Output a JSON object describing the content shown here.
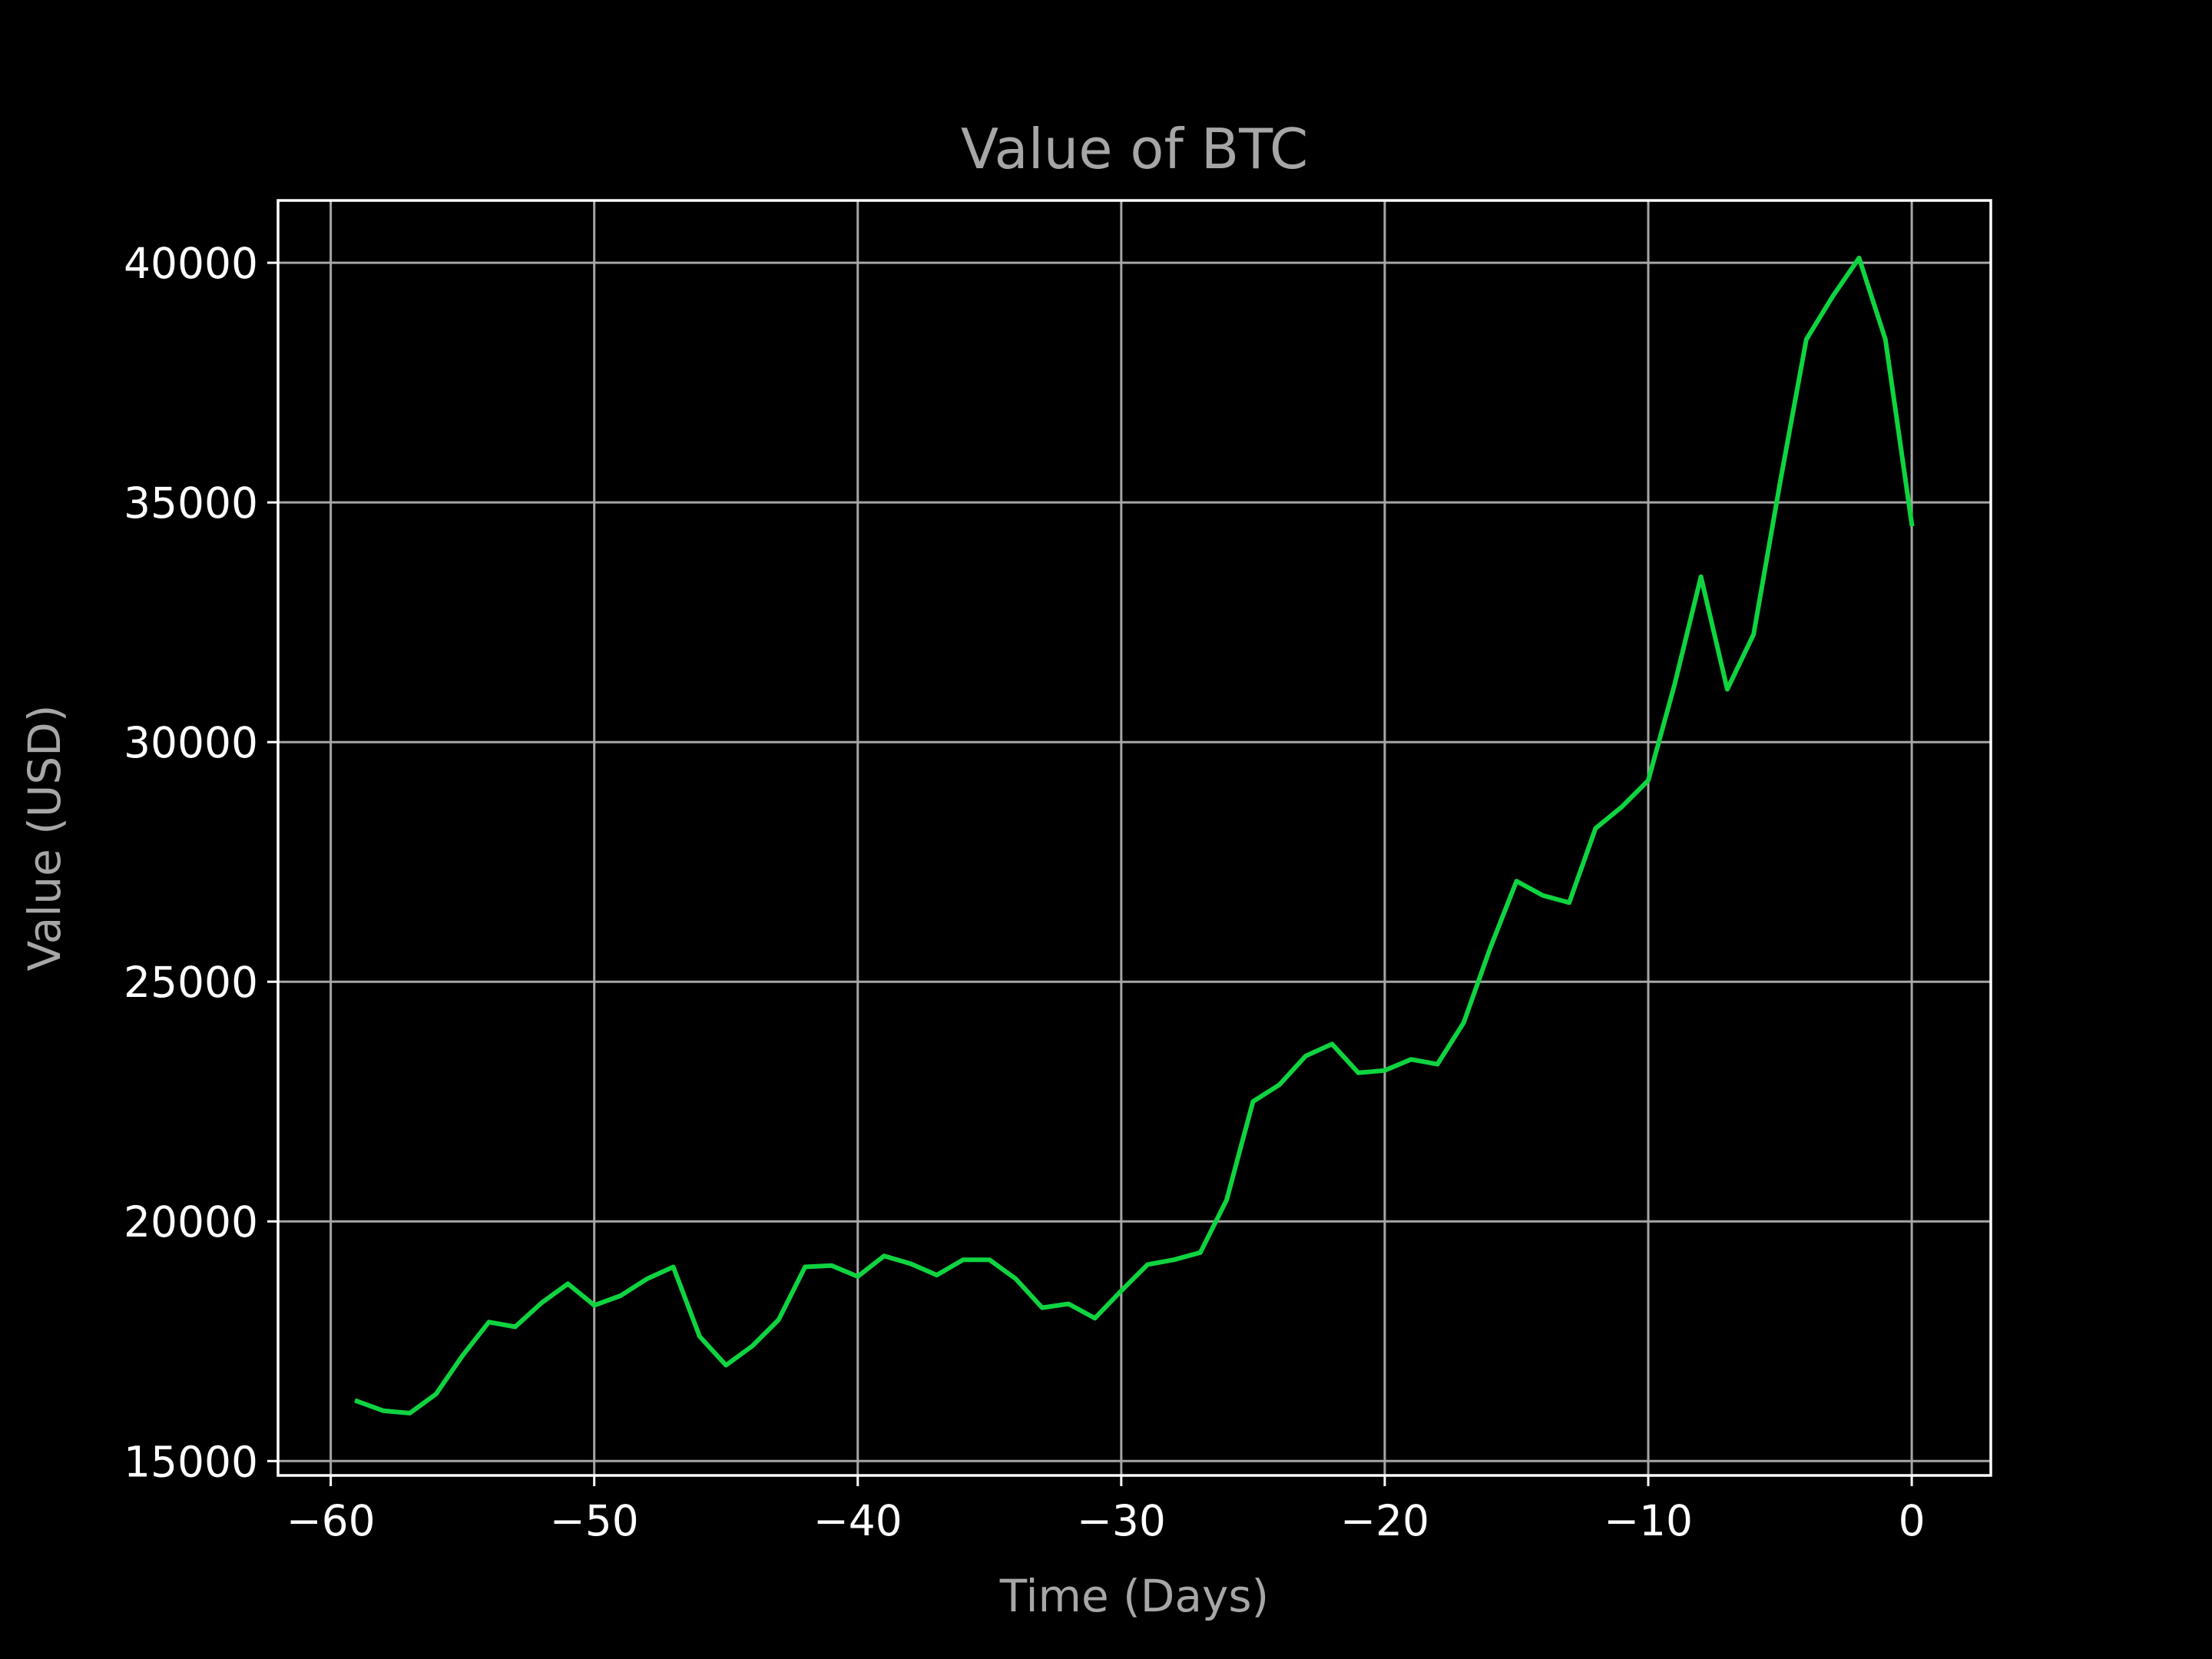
{
  "colors": {
    "background": "#000000",
    "line": "#0fd440",
    "grid": "#a6a6a6",
    "axes": "#ffffff",
    "title_text": "#a6a6a6",
    "tick_text": "#ffffff"
  },
  "chart_data": {
    "type": "line",
    "title": "Value of BTC",
    "xlabel": "Time (Days)",
    "ylabel": "Value (USD)",
    "xlim": [
      -62,
      3
    ],
    "ylim": [
      14700,
      41300
    ],
    "grid": true,
    "xticks": [
      -60,
      -50,
      -40,
      -30,
      -20,
      -10,
      0
    ],
    "xtick_labels": [
      "−60",
      "−50",
      "−40",
      "−30",
      "−20",
      "−10",
      "0"
    ],
    "yticks": [
      15000,
      20000,
      25000,
      30000,
      35000,
      40000
    ],
    "ytick_labels": [
      "15000",
      "20000",
      "25000",
      "30000",
      "35000",
      "40000"
    ],
    "series": [
      {
        "x": [
          -59,
          -58,
          -57,
          -56,
          -55,
          -54,
          -53,
          -52,
          -51,
          -50,
          -49,
          -48,
          -47,
          -46,
          -45,
          -44,
          -43,
          -42,
          -41,
          -40,
          -39,
          -38,
          -37,
          -36,
          -35,
          -34,
          -33,
          -32,
          -31,
          -30,
          -29,
          -28,
          -27,
          -26,
          -25,
          -24,
          -23,
          -22,
          -21,
          -20,
          -19,
          -18,
          -17,
          -16,
          -15,
          -14,
          -13,
          -12,
          -11,
          -10,
          -9,
          -8,
          -7,
          -6,
          -5,
          -4,
          -3,
          -2,
          -1,
          0
        ],
        "values": [
          16250,
          16050,
          16000,
          16400,
          17200,
          17900,
          17800,
          18300,
          18700,
          18250,
          18450,
          18800,
          19050,
          17600,
          17000,
          17400,
          17950,
          19050,
          19080,
          18850,
          19280,
          19120,
          18880,
          19200,
          19200,
          18800,
          18200,
          18280,
          17980,
          18550,
          19100,
          19200,
          19350,
          20450,
          22500,
          22850,
          23450,
          23700,
          23100,
          23150,
          23380,
          23280,
          24150,
          25700,
          27100,
          26800,
          26650,
          28200,
          28650,
          29200,
          31200,
          33450,
          31100,
          32250,
          35400,
          38400,
          39300,
          40100,
          38400,
          34550
        ]
      }
    ]
  }
}
